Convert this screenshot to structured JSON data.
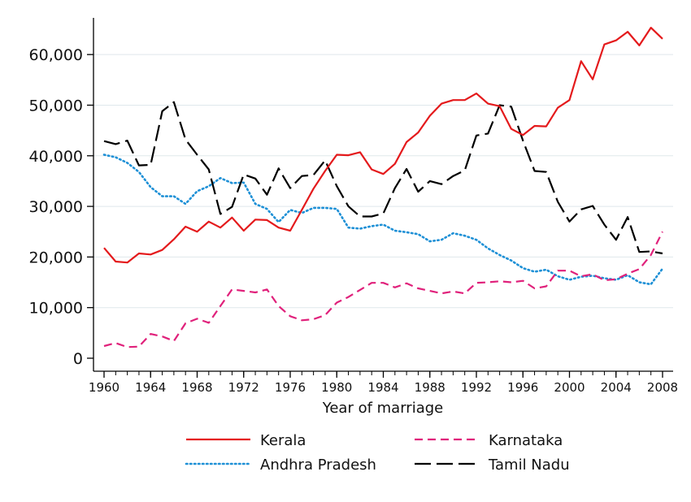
{
  "chart_data": {
    "type": "line",
    "title": "",
    "xlabel": "Year of marriage",
    "ylabel": "",
    "xlim": [
      1960,
      2008
    ],
    "ylim": [
      0,
      65000
    ],
    "xticks": [
      1960,
      1964,
      1968,
      1972,
      1976,
      1980,
      1984,
      1988,
      1992,
      1996,
      2000,
      2004,
      2008
    ],
    "xtick_labels": [
      "1960",
      "1964",
      "1968",
      "1972",
      "1976",
      "1980",
      "1984",
      "1988",
      "1992",
      "1996",
      "2000",
      "2004",
      "2008"
    ],
    "yticks": [
      0,
      10000,
      20000,
      30000,
      40000,
      50000,
      60000
    ],
    "ytick_labels": [
      "0",
      "10,000",
      "20,000",
      "30,000",
      "40,000",
      "50,000",
      "60,000"
    ],
    "grid": "horizontal",
    "legend_position": "bottom",
    "x": [
      1960,
      1961,
      1962,
      1963,
      1964,
      1965,
      1966,
      1967,
      1968,
      1969,
      1970,
      1971,
      1972,
      1973,
      1974,
      1975,
      1976,
      1977,
      1978,
      1979,
      1980,
      1981,
      1982,
      1983,
      1984,
      1985,
      1986,
      1987,
      1988,
      1989,
      1990,
      1991,
      1992,
      1993,
      1994,
      1995,
      1996,
      1997,
      1998,
      1999,
      2000,
      2001,
      2002,
      2003,
      2004,
      2005,
      2006,
      2007,
      2008
    ],
    "series": [
      {
        "name": "Kerala",
        "color": "#e41a1c",
        "style": "solid",
        "values": [
          21800,
          19100,
          18900,
          20700,
          20500,
          21400,
          23500,
          26000,
          25000,
          27000,
          25800,
          27800,
          25200,
          27400,
          27300,
          25800,
          25200,
          29300,
          33500,
          37000,
          40200,
          40100,
          40700,
          37300,
          36400,
          38400,
          42700,
          44600,
          47900,
          50300,
          51000,
          51000,
          52300,
          50300,
          49800,
          45300,
          44100,
          45900,
          45800,
          49500,
          51000,
          58700,
          55100,
          62000,
          62800,
          64500,
          61800,
          65300,
          63100
        ]
      },
      {
        "name": "Karnataka",
        "color": "#e0217b",
        "style": "dashed",
        "values": [
          2400,
          3000,
          2200,
          2300,
          4800,
          4300,
          3400,
          6900,
          7800,
          7000,
          10300,
          13600,
          13300,
          13000,
          13600,
          10300,
          8300,
          7500,
          7700,
          8500,
          11000,
          12100,
          13500,
          14900,
          14900,
          14000,
          14800,
          13800,
          13300,
          12800,
          13200,
          12800,
          14900,
          15000,
          15200,
          15000,
          15300,
          13800,
          14200,
          17300,
          17300,
          16200,
          16600,
          15400,
          15600,
          16700,
          17600,
          20400,
          25000
        ]
      },
      {
        "name": "Andhra Pradesh",
        "color": "#1e90d6",
        "style": "dotted",
        "values": [
          40200,
          39700,
          38600,
          36800,
          33800,
          32000,
          32000,
          30500,
          33000,
          34000,
          35600,
          34600,
          34700,
          30500,
          29500,
          26900,
          29300,
          28700,
          29700,
          29700,
          29500,
          25800,
          25600,
          26100,
          26400,
          25200,
          24900,
          24500,
          23100,
          23400,
          24700,
          24200,
          23400,
          21700,
          20400,
          19300,
          17800,
          17100,
          17500,
          16200,
          15500,
          16100,
          16300,
          15800,
          15500,
          16400,
          15000,
          14600,
          17700
        ]
      },
      {
        "name": "Tamil Nadu",
        "color": "#000000",
        "style": "longdash",
        "values": [
          42900,
          42300,
          43000,
          38100,
          38200,
          48800,
          50600,
          43200,
          40200,
          37300,
          28500,
          29900,
          36300,
          35500,
          32300,
          37500,
          33600,
          36000,
          36200,
          39100,
          34000,
          30000,
          28000,
          28000,
          28600,
          33600,
          37400,
          32900,
          35000,
          34400,
          36000,
          37100,
          44000,
          44400,
          50000,
          49700,
          43000,
          37000,
          36800,
          30900,
          27000,
          29400,
          30100,
          26400,
          23400,
          27900,
          21000,
          21100,
          20700
        ]
      }
    ]
  }
}
